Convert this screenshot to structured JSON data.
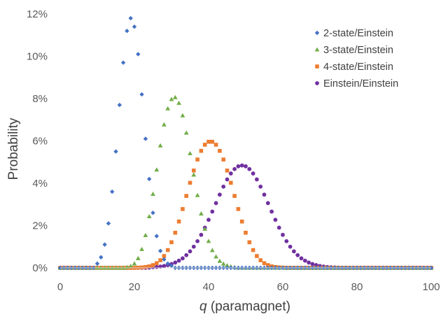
{
  "chart_data": {
    "type": "scatter",
    "title": "",
    "xlabel_var": "q",
    "xlabel_rest": " (paramagnet)",
    "ylabel": "Probability",
    "xlim": [
      0,
      100
    ],
    "ylim": [
      0,
      0.12
    ],
    "x_ticks": [
      0,
      20,
      40,
      60,
      80,
      100
    ],
    "x_tick_labels": [
      "0",
      "20",
      "40",
      "60",
      "80",
      "100"
    ],
    "y_ticks": [
      0,
      0.02,
      0.04,
      0.06,
      0.08,
      0.1,
      0.12
    ],
    "y_tick_labels": [
      "0%",
      "2%",
      "4%",
      "6%",
      "8%",
      "10%",
      "12%"
    ],
    "grid": false,
    "legend_position": "top-right",
    "x": [
      0,
      1,
      2,
      3,
      4,
      5,
      6,
      7,
      8,
      9,
      10,
      11,
      12,
      13,
      14,
      15,
      16,
      17,
      18,
      19,
      20,
      21,
      22,
      23,
      24,
      25,
      26,
      27,
      28,
      29,
      30,
      31,
      32,
      33,
      34,
      35,
      36,
      37,
      38,
      39,
      40,
      41,
      42,
      43,
      44,
      45,
      46,
      47,
      48,
      49,
      50,
      51,
      52,
      53,
      54,
      55,
      56,
      57,
      58,
      59,
      60,
      61,
      62,
      63,
      64,
      65,
      66,
      67,
      68,
      69,
      70,
      71,
      72,
      73,
      74,
      75,
      76,
      77,
      78,
      79,
      80,
      81,
      82,
      83,
      84,
      85,
      86,
      87,
      88,
      89,
      90,
      91,
      92,
      93,
      94,
      95,
      96,
      97,
      98,
      99,
      100
    ],
    "series": [
      {
        "name": "2-state/Einstein",
        "color": "#4472C4",
        "marker": "diamond",
        "values": [
          0,
          0,
          0,
          0,
          0,
          0,
          0,
          0,
          0,
          0,
          0.002,
          0.005,
          0.011,
          0.021,
          0.036,
          0.055,
          0.077,
          0.097,
          0.112,
          0.118,
          0.114,
          0.101,
          0.082,
          0.061,
          0.042,
          0.026,
          0.015,
          0.008,
          0.004,
          0.002,
          0.001,
          0,
          0,
          0,
          0,
          0,
          0,
          0,
          0,
          0,
          0,
          0,
          0,
          0,
          0,
          0,
          0,
          0,
          0,
          0,
          0,
          0,
          0,
          0,
          0,
          0,
          0,
          0,
          0,
          0,
          0,
          0,
          0,
          0,
          0,
          0,
          0,
          0,
          0,
          0,
          0,
          0,
          0,
          0,
          0,
          0,
          0,
          0,
          0,
          0,
          0,
          0,
          0,
          0,
          0,
          0,
          0,
          0,
          0,
          0,
          0,
          0,
          0,
          0,
          0,
          0,
          0,
          0,
          0,
          0,
          0
        ]
      },
      {
        "name": "3-state/Einstein",
        "color": "#70AD47",
        "marker": "triangle",
        "values": [
          0,
          0,
          0,
          0,
          0,
          0,
          0,
          0,
          0,
          0,
          0,
          0,
          0,
          0,
          0,
          0,
          0,
          0,
          0.0003,
          0.0008,
          0.002,
          0.0045,
          0.0088,
          0.0154,
          0.0243,
          0.0349,
          0.0464,
          0.0578,
          0.0677,
          0.0753,
          0.0797,
          0.0806,
          0.0779,
          0.072,
          0.0638,
          0.0541,
          0.044,
          0.0343,
          0.0256,
          0.0184,
          0.0126,
          0.0083,
          0.0053,
          0.0032,
          0.0019,
          0.0011,
          0.0006,
          0.0003,
          0,
          0,
          0,
          0,
          0,
          0,
          0,
          0,
          0,
          0,
          0,
          0,
          0,
          0,
          0,
          0,
          0,
          0,
          0,
          0,
          0,
          0,
          0,
          0,
          0,
          0,
          0,
          0,
          0,
          0,
          0,
          0,
          0,
          0,
          0,
          0,
          0,
          0,
          0,
          0,
          0,
          0,
          0,
          0,
          0,
          0,
          0,
          0,
          0,
          0,
          0,
          0,
          0
        ]
      },
      {
        "name": "4-state/Einstein",
        "color": "#ED7D31",
        "marker": "square",
        "values": [
          0,
          0,
          0,
          0,
          0,
          0,
          0,
          0,
          0,
          0,
          0,
          0,
          0,
          0,
          0,
          0,
          0,
          0,
          0,
          0,
          0,
          0.0001,
          0.0002,
          0.0004,
          0.0007,
          0.0013,
          0.0022,
          0.0036,
          0.0056,
          0.0084,
          0.0121,
          0.0166,
          0.0219,
          0.0278,
          0.034,
          0.0402,
          0.046,
          0.0512,
          0.0553,
          0.0582,
          0.0596,
          0.0596,
          0.0582,
          0.0553,
          0.0512,
          0.046,
          0.0402,
          0.034,
          0.0278,
          0.0219,
          0.0166,
          0.0121,
          0.0084,
          0.0056,
          0.0036,
          0.0022,
          0.0013,
          0.0007,
          0.0004,
          0.0002,
          0.0001,
          0,
          0,
          0,
          0,
          0,
          0,
          0,
          0,
          0,
          0,
          0,
          0,
          0,
          0,
          0,
          0,
          0,
          0,
          0,
          0,
          0,
          0,
          0,
          0,
          0,
          0,
          0,
          0,
          0,
          0,
          0,
          0,
          0,
          0,
          0,
          0,
          0,
          0,
          0,
          0
        ]
      },
      {
        "name": "Einstein/Einstein",
        "color": "#7030A0",
        "marker": "circle",
        "values": [
          0,
          0,
          0,
          0,
          0,
          0,
          0,
          0,
          0,
          0,
          0,
          0,
          0,
          0,
          0,
          0,
          0,
          0,
          0,
          0,
          0,
          0,
          0,
          0,
          0.0001,
          0.0003,
          0.0004,
          0.0006,
          0.0009,
          0.0013,
          0.0018,
          0.0025,
          0.0034,
          0.0045,
          0.006,
          0.0078,
          0.01,
          0.0126,
          0.0156,
          0.019,
          0.0227,
          0.0266,
          0.0306,
          0.0346,
          0.0384,
          0.0418,
          0.0446,
          0.0467,
          0.048,
          0.0484,
          0.048,
          0.0467,
          0.0446,
          0.0418,
          0.0384,
          0.0346,
          0.0306,
          0.0266,
          0.0227,
          0.019,
          0.0156,
          0.0126,
          0.01,
          0.0078,
          0.006,
          0.0045,
          0.0034,
          0.0025,
          0.0018,
          0.0013,
          0.0009,
          0.0006,
          0.0004,
          0.0003,
          0.0002,
          0.0001,
          0,
          0,
          0,
          0,
          0,
          0,
          0,
          0,
          0,
          0,
          0,
          0,
          0,
          0,
          0,
          0,
          0,
          0,
          0,
          0,
          0,
          0,
          0,
          0,
          0
        ]
      }
    ]
  }
}
